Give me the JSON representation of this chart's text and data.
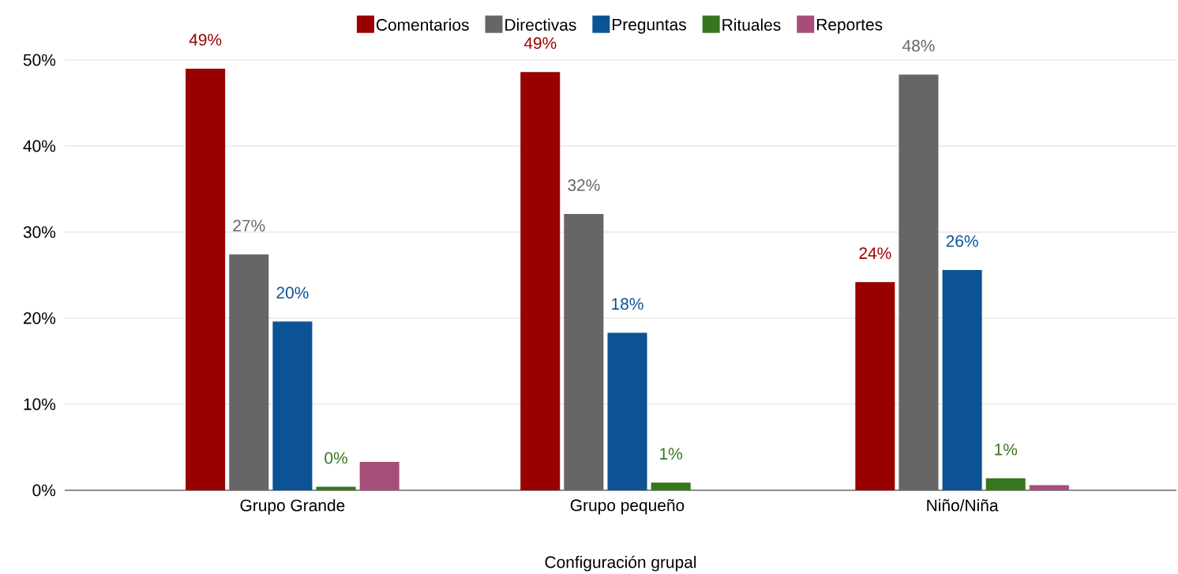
{
  "chart_data": {
    "type": "bar",
    "xlabel": "Configuración grupal",
    "categories": [
      "Grupo Grande",
      "Grupo pequeño",
      "Niño/Niña"
    ],
    "series": [
      {
        "name": "Comentarios",
        "color": "#990000",
        "values": [
          49.0,
          48.6,
          24.2
        ],
        "value_labels": [
          "49%",
          "49%",
          "24%"
        ]
      },
      {
        "name": "Directivas",
        "color": "#666666",
        "values": [
          27.4,
          32.1,
          48.3
        ],
        "value_labels": [
          "27%",
          "32%",
          "48%"
        ]
      },
      {
        "name": "Preguntas",
        "color": "#0b5394",
        "values": [
          19.6,
          18.3,
          25.6
        ],
        "value_labels": [
          "20%",
          "18%",
          "26%"
        ]
      },
      {
        "name": "Rituales",
        "color": "#38761d",
        "values": [
          0.4,
          0.9,
          1.4
        ],
        "value_labels": [
          "0%",
          "1%",
          "1%"
        ]
      },
      {
        "name": "Reportes",
        "color": "#a64d79",
        "values": [
          3.3,
          null,
          0.6
        ]
      }
    ],
    "ylim": [
      0,
      50
    ],
    "yticks": [
      {
        "value": 0,
        "label": "0%"
      },
      {
        "value": 10,
        "label": "10%"
      },
      {
        "value": 20,
        "label": "20%"
      },
      {
        "value": 30,
        "label": "30%"
      },
      {
        "value": 40,
        "label": "40%"
      },
      {
        "value": 50,
        "label": "50%"
      }
    ],
    "grid": "y",
    "legend": "top"
  }
}
